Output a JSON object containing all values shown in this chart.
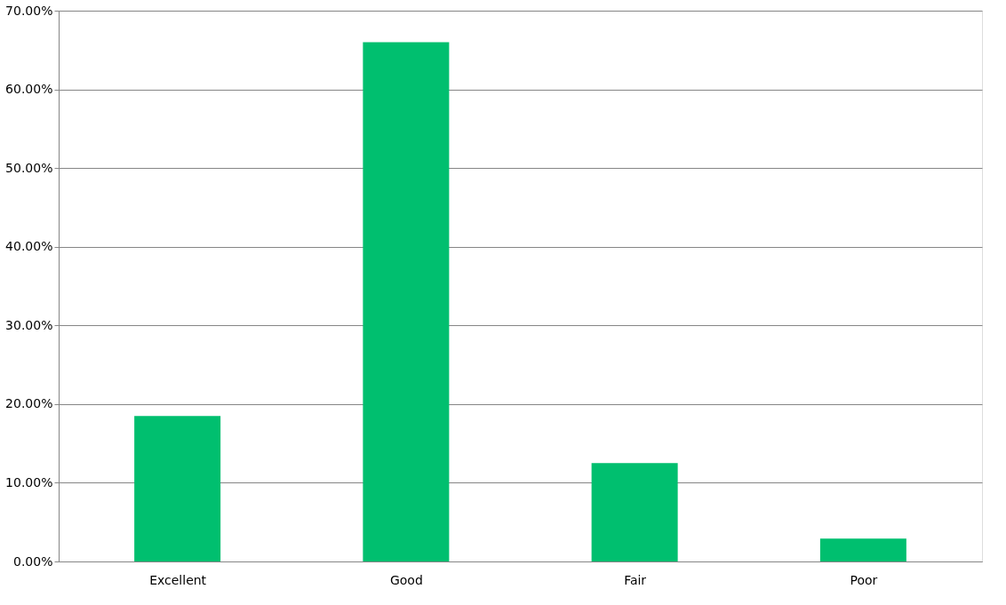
{
  "chart_data": {
    "type": "bar",
    "categories": [
      "Excellent",
      "Good",
      "Fair",
      "Poor"
    ],
    "values": [
      18.5,
      66.0,
      12.5,
      2.9
    ],
    "color": "#00bf6f",
    "ylim": [
      0,
      70
    ],
    "yticks": [
      {
        "value": 0,
        "label": "0.00%"
      },
      {
        "value": 10,
        "label": "10.00%"
      },
      {
        "value": 20,
        "label": "20.00%"
      },
      {
        "value": 30,
        "label": "30.00%"
      },
      {
        "value": 40,
        "label": "40.00%"
      },
      {
        "value": 50,
        "label": "50.00%"
      },
      {
        "value": 60,
        "label": "60.00%"
      },
      {
        "value": 70,
        "label": "70.00%"
      }
    ],
    "grid": "y"
  }
}
